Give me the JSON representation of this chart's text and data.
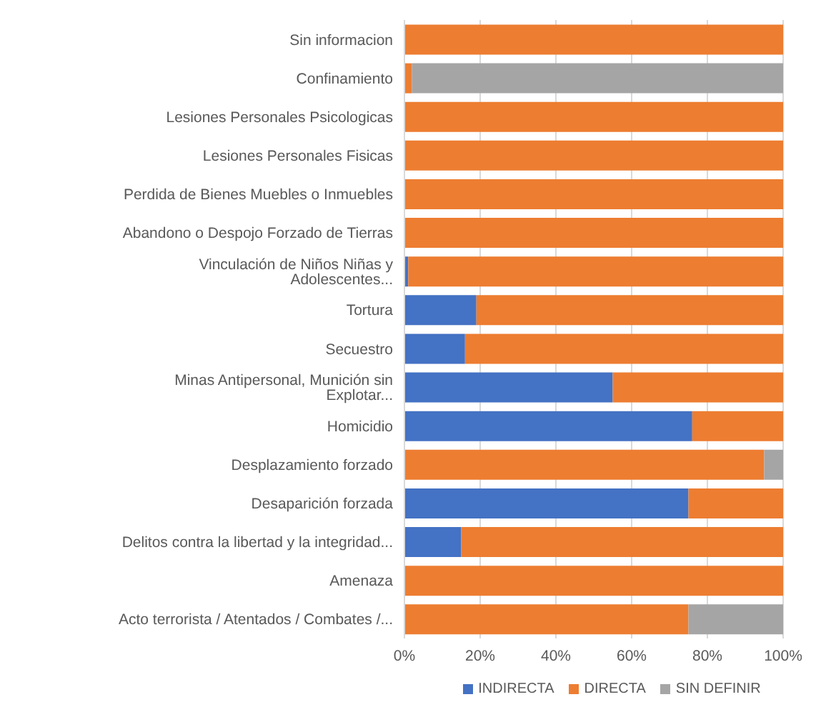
{
  "chart_data": {
    "type": "bar",
    "orientation": "horizontal",
    "stacked": true,
    "categories": [
      "Sin informacion",
      "Confinamiento",
      "Lesiones Personales Psicologicas",
      "Lesiones Personales Fisicas",
      "Perdida de Bienes Muebles o Inmuebles",
      "Abandono o Despojo Forzado de Tierras",
      "Vinculación de Niños Niñas y Adolescentes...",
      "Tortura",
      "Secuestro",
      "Minas Antipersonal, Munición sin Explotar...",
      "Homicidio",
      "Desplazamiento forzado",
      "Desaparición forzada",
      "Delitos contra la libertad y la integridad...",
      "Amenaza",
      "Acto terrorista / Atentados / Combates /..."
    ],
    "series": [
      {
        "name": "INDIRECTA",
        "color": "#4472c4",
        "values": [
          0,
          0,
          0,
          0,
          0,
          0,
          1,
          19,
          16,
          55,
          76,
          0,
          75,
          15,
          0,
          0
        ]
      },
      {
        "name": "DIRECTA",
        "color": "#ed7d31",
        "values": [
          100,
          2,
          100,
          100,
          100,
          100,
          99,
          81,
          84,
          45,
          24,
          95,
          25,
          85,
          100,
          75
        ]
      },
      {
        "name": "SIN DEFINIR",
        "color": "#a5a5a5",
        "values": [
          0,
          98,
          0,
          0,
          0,
          0,
          0,
          0,
          0,
          0,
          0,
          5,
          0,
          0,
          0,
          25
        ]
      }
    ],
    "xlim": [
      0,
      100
    ],
    "xticks": [
      {
        "value": 0,
        "label": "0%"
      },
      {
        "value": 20,
        "label": "20%"
      },
      {
        "value": 40,
        "label": "40%"
      },
      {
        "value": 60,
        "label": "60%"
      },
      {
        "value": 80,
        "label": "80%"
      },
      {
        "value": 100,
        "label": "100%"
      }
    ],
    "grid": "x",
    "legend": "bottom"
  }
}
